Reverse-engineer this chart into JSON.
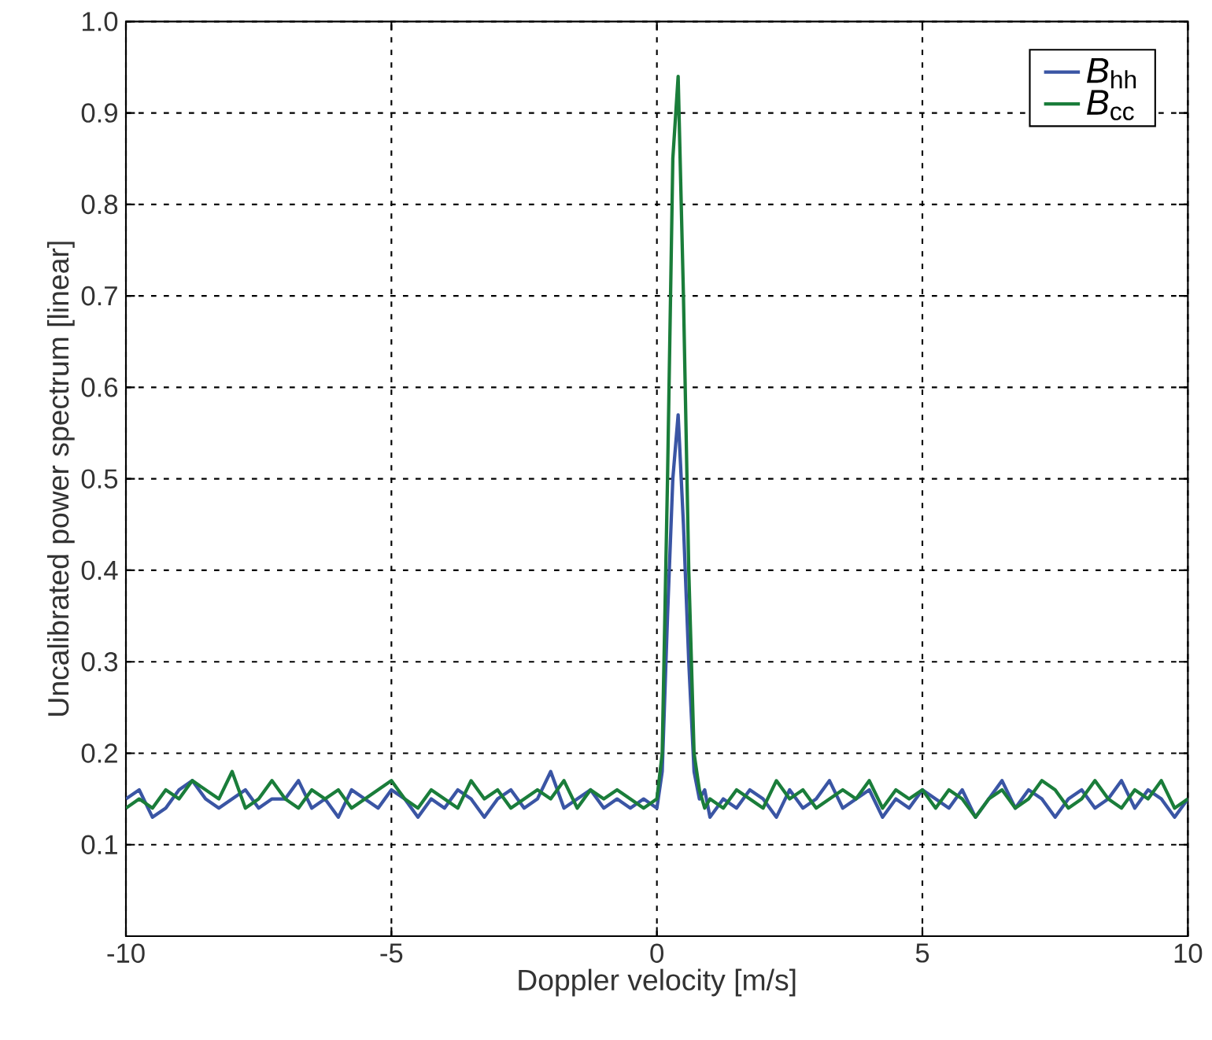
{
  "chart_data": {
    "type": "line",
    "xlabel": "Doppler velocity [m/s]",
    "ylabel": "Uncalibrated power spectrum [linear]",
    "x": [
      -10,
      -9.75,
      -9.5,
      -9.25,
      -9,
      -8.75,
      -8.5,
      -8.25,
      -8,
      -7.75,
      -7.5,
      -7.25,
      -7,
      -6.75,
      -6.5,
      -6.25,
      -6,
      -5.75,
      -5.5,
      -5.25,
      -5,
      -4.75,
      -4.5,
      -4.25,
      -4,
      -3.75,
      -3.5,
      -3.25,
      -3,
      -2.75,
      -2.5,
      -2.25,
      -2,
      -1.75,
      -1.5,
      -1.25,
      -1,
      -0.75,
      -0.5,
      -0.25,
      0,
      0.1,
      0.2,
      0.3,
      0.4,
      0.5,
      0.6,
      0.7,
      0.8,
      0.9,
      1,
      1.25,
      1.5,
      1.75,
      2,
      2.25,
      2.5,
      2.75,
      3,
      3.25,
      3.5,
      3.75,
      4,
      4.25,
      4.5,
      4.75,
      5,
      5.25,
      5.5,
      5.75,
      6,
      6.25,
      6.5,
      6.75,
      7,
      7.25,
      7.5,
      7.75,
      8,
      8.25,
      8.5,
      8.75,
      9,
      9.25,
      9.5,
      9.75,
      10
    ],
    "series": [
      {
        "name": "*B*$_{hh}$",
        "color": "#3a55a4",
        "values": [
          0.15,
          0.16,
          0.13,
          0.14,
          0.16,
          0.17,
          0.15,
          0.14,
          0.15,
          0.16,
          0.14,
          0.15,
          0.15,
          0.17,
          0.14,
          0.15,
          0.13,
          0.16,
          0.15,
          0.14,
          0.16,
          0.15,
          0.13,
          0.15,
          0.14,
          0.16,
          0.15,
          0.13,
          0.15,
          0.16,
          0.14,
          0.15,
          0.18,
          0.14,
          0.15,
          0.16,
          0.14,
          0.15,
          0.14,
          0.15,
          0.14,
          0.18,
          0.35,
          0.5,
          0.57,
          0.45,
          0.3,
          0.18,
          0.15,
          0.16,
          0.13,
          0.15,
          0.14,
          0.16,
          0.15,
          0.13,
          0.16,
          0.14,
          0.15,
          0.17,
          0.14,
          0.15,
          0.16,
          0.13,
          0.15,
          0.14,
          0.16,
          0.15,
          0.14,
          0.16,
          0.13,
          0.15,
          0.17,
          0.14,
          0.16,
          0.15,
          0.13,
          0.15,
          0.16,
          0.14,
          0.15,
          0.17,
          0.14,
          0.16,
          0.15,
          0.13,
          0.15
        ]
      },
      {
        "name": "*B*$_{cc}$",
        "color": "#1a7d3a",
        "values": [
          0.14,
          0.15,
          0.14,
          0.16,
          0.15,
          0.17,
          0.16,
          0.15,
          0.18,
          0.14,
          0.15,
          0.17,
          0.15,
          0.14,
          0.16,
          0.15,
          0.16,
          0.14,
          0.15,
          0.16,
          0.17,
          0.15,
          0.14,
          0.16,
          0.15,
          0.14,
          0.17,
          0.15,
          0.16,
          0.14,
          0.15,
          0.16,
          0.15,
          0.17,
          0.14,
          0.16,
          0.15,
          0.16,
          0.15,
          0.14,
          0.15,
          0.2,
          0.5,
          0.85,
          0.94,
          0.7,
          0.4,
          0.2,
          0.16,
          0.14,
          0.15,
          0.14,
          0.16,
          0.15,
          0.14,
          0.17,
          0.15,
          0.16,
          0.14,
          0.15,
          0.16,
          0.15,
          0.17,
          0.14,
          0.16,
          0.15,
          0.16,
          0.14,
          0.16,
          0.15,
          0.13,
          0.15,
          0.16,
          0.14,
          0.15,
          0.17,
          0.16,
          0.14,
          0.15,
          0.17,
          0.15,
          0.14,
          0.16,
          0.15,
          0.17,
          0.14,
          0.15
        ]
      }
    ],
    "xlim": [
      -10,
      10
    ],
    "ylim": [
      0,
      1
    ],
    "xticks": [
      -10,
      -5,
      0,
      5,
      10
    ],
    "yticks": [
      {
        "value": 0,
        "label": null
      },
      0.1,
      0.2,
      0.3,
      0.4,
      0.5,
      0.6,
      0.7,
      0.8,
      0.9,
      {
        "value": 1,
        "label": "1.0"
      }
    ],
    "grid": true,
    "legend": "top right",
    "marker": "none",
    "line_style": "solid"
  }
}
